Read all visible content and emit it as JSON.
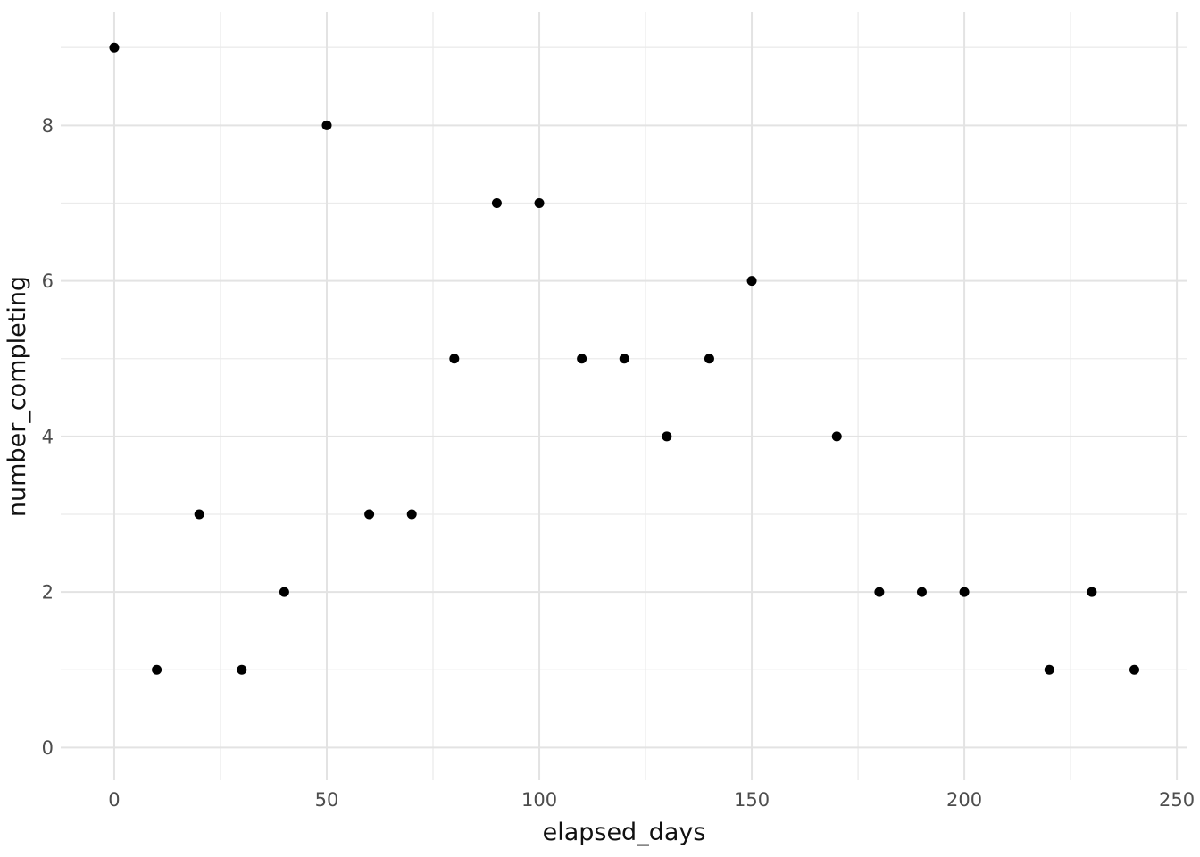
{
  "chart_data": {
    "type": "scatter",
    "title": "",
    "xlabel": "elapsed_days",
    "ylabel": "number_completing",
    "points": [
      {
        "x": 0,
        "y": 9
      },
      {
        "x": 10,
        "y": 1
      },
      {
        "x": 20,
        "y": 3
      },
      {
        "x": 30,
        "y": 1
      },
      {
        "x": 40,
        "y": 2
      },
      {
        "x": 50,
        "y": 8
      },
      {
        "x": 60,
        "y": 3
      },
      {
        "x": 70,
        "y": 3
      },
      {
        "x": 80,
        "y": 5
      },
      {
        "x": 90,
        "y": 7
      },
      {
        "x": 100,
        "y": 7
      },
      {
        "x": 110,
        "y": 5
      },
      {
        "x": 120,
        "y": 5
      },
      {
        "x": 130,
        "y": 4
      },
      {
        "x": 140,
        "y": 5
      },
      {
        "x": 150,
        "y": 6
      },
      {
        "x": 170,
        "y": 4
      },
      {
        "x": 180,
        "y": 2
      },
      {
        "x": 190,
        "y": 2
      },
      {
        "x": 200,
        "y": 2
      },
      {
        "x": 220,
        "y": 1
      },
      {
        "x": 230,
        "y": 2
      },
      {
        "x": 240,
        "y": 1
      }
    ],
    "x_ticks": [
      0,
      50,
      100,
      150,
      200,
      250
    ],
    "y_ticks": [
      0,
      2,
      4,
      6,
      8
    ],
    "x_minor_gridlines": [
      25,
      75,
      125,
      175,
      225
    ],
    "y_minor_gridlines": [
      1,
      3,
      5,
      7,
      9
    ],
    "xlim": [
      -12.6,
      252.5
    ],
    "ylim": [
      -0.42,
      9.45
    ],
    "grid": "on",
    "legend": "none",
    "colors": {
      "point": "#000000",
      "grid_major": "#e3e3e3",
      "grid_minor": "#ebebeb",
      "tick_label": "#4d4d4d",
      "axis_title": "#111111",
      "background": "#ffffff"
    },
    "point_radius": 5.5
  }
}
